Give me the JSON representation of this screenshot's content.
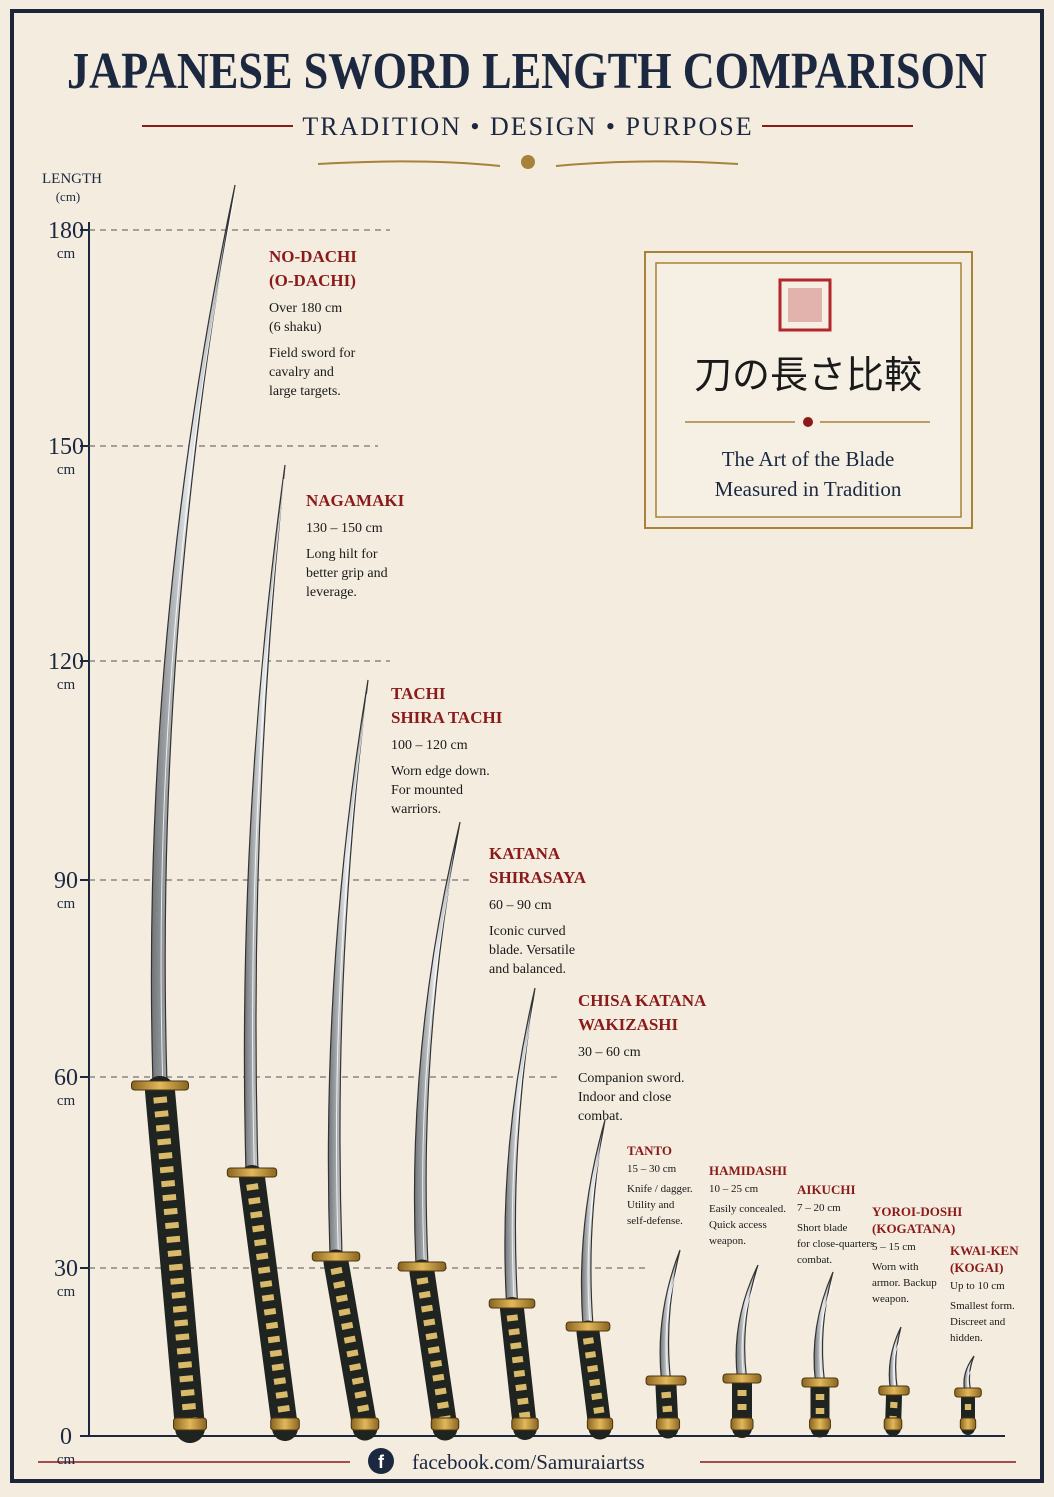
{
  "header": {
    "title": "JAPANESE SWORD LENGTH COMPARISON",
    "subtitle": "TRADITION • DESIGN • PURPOSE"
  },
  "axis": {
    "title": "LENGTH",
    "unit_title": "(cm)",
    "ticks": [
      {
        "value": "180",
        "unit": "cm"
      },
      {
        "value": "150",
        "unit": "cm"
      },
      {
        "value": "120",
        "unit": "cm"
      },
      {
        "value": "90",
        "unit": "cm"
      },
      {
        "value": "60",
        "unit": "cm"
      },
      {
        "value": "30",
        "unit": "cm"
      },
      {
        "value": "0",
        "unit": "cm"
      }
    ]
  },
  "swords": [
    {
      "name": [
        "NO-DACHI",
        "(O-DACHI)"
      ],
      "range": [
        "Over 180 cm",
        "(6 shaku)"
      ],
      "description": [
        "Field sword for",
        "cavalry and",
        "large targets."
      ]
    },
    {
      "name": [
        "NAGAMAKI"
      ],
      "range": [
        "130 – 150 cm"
      ],
      "description": [
        "Long hilt for",
        "better grip and",
        "leverage."
      ]
    },
    {
      "name": [
        "TACHI",
        "SHIRA TACHI"
      ],
      "range": [
        "100 – 120 cm"
      ],
      "description": [
        "Worn edge down.",
        "For mounted",
        "warriors."
      ]
    },
    {
      "name": [
        "KATANA",
        "SHIRASAYA"
      ],
      "range": [
        "60 – 90 cm"
      ],
      "description": [
        "Iconic curved",
        "blade. Versatile",
        "and balanced."
      ]
    },
    {
      "name": [
        "CHISA KATANA",
        "WAKIZASHI"
      ],
      "range": [
        "30 – 60 cm"
      ],
      "description": [
        "Companion sword.",
        "Indoor and close",
        "combat."
      ]
    },
    {
      "name": [
        "TANTO"
      ],
      "range": [
        "15 – 30 cm"
      ],
      "description": [
        "Knife / dagger.",
        "Utility and",
        "self-defense."
      ]
    },
    {
      "name": [
        "HAMIDASHI"
      ],
      "range": [
        "10 – 25 cm"
      ],
      "description": [
        "Easily concealed.",
        "Quick access",
        "weapon."
      ]
    },
    {
      "name": [
        "AIKUCHI"
      ],
      "range": [
        "7 – 20 cm"
      ],
      "description": [
        "Short blade",
        "for close-quarters",
        "combat."
      ]
    },
    {
      "name": [
        "YOROI-DOSHI",
        "(KOGATANA)"
      ],
      "range": [
        "5 – 15 cm"
      ],
      "description": [
        "Worn with",
        "armor. Backup",
        "weapon."
      ]
    },
    {
      "name": [
        "KWAI-KEN",
        "(KOGAI)"
      ],
      "range": [
        "Up to 10 cm"
      ],
      "description": [
        "Smallest form.",
        "Discreet and",
        "hidden."
      ]
    }
  ],
  "panel": {
    "japanese_title": "刀の長さ比較",
    "caption": [
      "The Art of the Blade",
      "Measured in Tradition"
    ]
  },
  "footer": {
    "link": "facebook.com/Samuraiartss"
  }
}
